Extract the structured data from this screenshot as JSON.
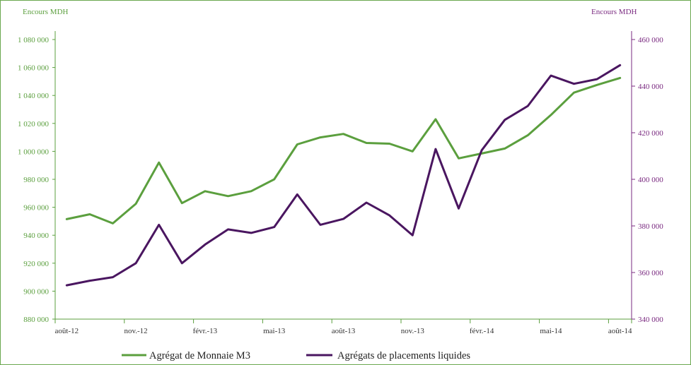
{
  "chart_data": {
    "type": "line",
    "x": [
      "2012-08",
      "2012-09",
      "2012-10",
      "2012-11",
      "2012-12",
      "2013-01",
      "2013-02",
      "2013-03",
      "2013-04",
      "2013-05",
      "2013-06",
      "2013-07",
      "2013-08",
      "2013-09",
      "2013-10",
      "2013-11",
      "2013-12",
      "2014-01",
      "2014-02",
      "2014-03",
      "2014-04",
      "2014-05",
      "2014-06",
      "2014-07",
      "2014-08"
    ],
    "x_ticks": [
      {
        "x": "2012-08",
        "label": "août-12"
      },
      {
        "x": "2012-11",
        "label": "nov.-12"
      },
      {
        "x": "2013-02",
        "label": "févr.-13"
      },
      {
        "x": "2013-05",
        "label": "mai-13"
      },
      {
        "x": "2013-08",
        "label": "août-13"
      },
      {
        "x": "2013-11",
        "label": "nov.-13"
      },
      {
        "x": "2014-02",
        "label": "févr.-14"
      },
      {
        "x": "2014-05",
        "label": "mai-14"
      },
      {
        "x": "2014-08",
        "label": "août-14"
      }
    ],
    "y_left": {
      "label": "Encours MDH",
      "range": [
        880000,
        1080000
      ],
      "color": "#5b9f3e",
      "ticks": [
        {
          "value": 880000,
          "label": "880 000"
        },
        {
          "value": 900000,
          "label": "900 000"
        },
        {
          "value": 920000,
          "label": "920 000"
        },
        {
          "value": 940000,
          "label": "940 000"
        },
        {
          "value": 960000,
          "label": "960 000"
        },
        {
          "value": 980000,
          "label": "980 000"
        },
        {
          "value": 1000000,
          "label": "1 000 000"
        },
        {
          "value": 1020000,
          "label": "1 020 000"
        },
        {
          "value": 1040000,
          "label": "1 040 000"
        },
        {
          "value": 1060000,
          "label": "1 060 000"
        },
        {
          "value": 1080000,
          "label": "1 080 000"
        }
      ]
    },
    "y_right": {
      "label": "Encours MDH",
      "range": [
        340000,
        460000
      ],
      "color": "#7a2a80",
      "ticks": [
        {
          "value": 340000,
          "label": "340 000"
        },
        {
          "value": 360000,
          "label": "360 000"
        },
        {
          "value": 380000,
          "label": "380 000"
        },
        {
          "value": 400000,
          "label": "400 000"
        },
        {
          "value": 420000,
          "label": "420 000"
        },
        {
          "value": 440000,
          "label": "440 000"
        },
        {
          "value": 460000,
          "label": "460 000"
        }
      ]
    },
    "series": [
      {
        "name": "Agrégat de Monnaie M3",
        "axis": "left",
        "color": "#5b9f3e",
        "values": [
          951500,
          955000,
          948500,
          962500,
          992000,
          963000,
          971500,
          968000,
          971500,
          980000,
          1005000,
          1010000,
          1012500,
          1006000,
          1005500,
          1000000,
          1023000,
          995000,
          998500,
          1002000,
          1011500,
          1026000,
          1042000,
          1047500,
          1052500
        ]
      },
      {
        "name": "Agrégats de placements liquides",
        "axis": "right",
        "color": "#4a1660",
        "values": [
          354500,
          356500,
          358000,
          364000,
          380500,
          364000,
          372000,
          378500,
          377000,
          379500,
          393500,
          380500,
          383000,
          390000,
          384500,
          376000,
          413000,
          387500,
          412500,
          425500,
          431500,
          444500,
          441000,
          443000,
          449000
        ]
      }
    ],
    "legend": "bottom",
    "grid": false
  }
}
